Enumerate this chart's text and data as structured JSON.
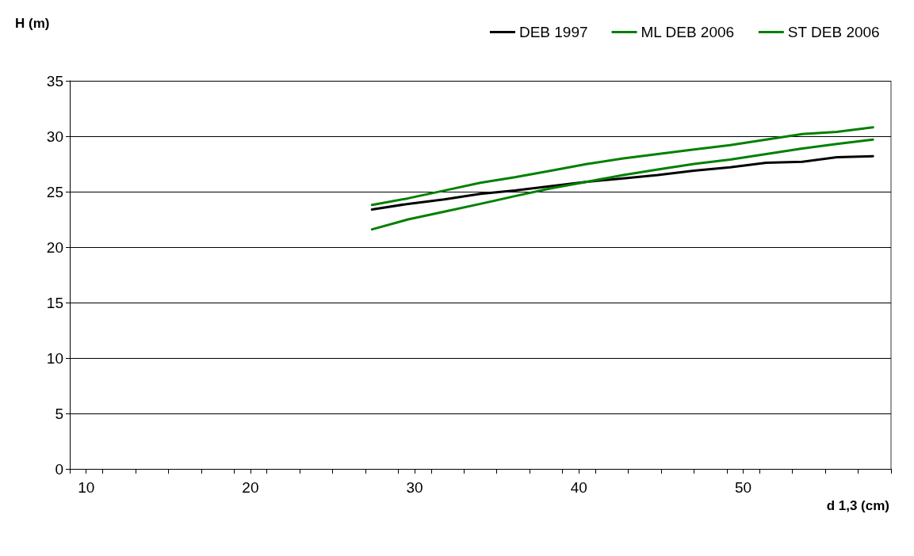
{
  "chart_data": {
    "type": "line",
    "xlabel": "d 1,3 (cm)",
    "ylabel": "H (m)",
    "x": [
      27.4,
      29.6,
      31.8,
      34.0,
      36.1,
      38.3,
      40.5,
      42.7,
      44.8,
      47.0,
      49.2,
      51.4,
      53.6,
      55.7,
      57.9
    ],
    "series": [
      {
        "name": "DEB 1997",
        "color": "#000000",
        "values": [
          23.4,
          23.9,
          24.3,
          24.8,
          25.1,
          25.5,
          25.9,
          26.2,
          26.5,
          26.9,
          27.2,
          27.6,
          27.7,
          28.1,
          28.2
        ]
      },
      {
        "name": "ML DEB 2006",
        "color": "#008000",
        "values": [
          21.6,
          22.5,
          23.2,
          23.9,
          24.6,
          25.3,
          25.9,
          26.5,
          27.0,
          27.5,
          27.9,
          28.4,
          28.9,
          29.3,
          29.7
        ]
      },
      {
        "name": "ST DEB 2006",
        "color": "#008000",
        "values": [
          23.8,
          24.4,
          25.1,
          25.8,
          26.3,
          26.9,
          27.5,
          28.0,
          28.4,
          28.8,
          29.2,
          29.7,
          30.2,
          30.4,
          30.8
        ]
      }
    ],
    "xlim": [
      9,
      59
    ],
    "xticks": [
      {
        "value": 9,
        "label": null
      },
      {
        "value": 10,
        "label": "10"
      },
      {
        "value": 11,
        "label": null
      },
      {
        "value": 13,
        "label": null
      },
      {
        "value": 15,
        "label": null
      },
      {
        "value": 17,
        "label": null
      },
      {
        "value": 19,
        "label": null
      },
      {
        "value": 20,
        "label": "20"
      },
      {
        "value": 21,
        "label": null
      },
      {
        "value": 23,
        "label": null
      },
      {
        "value": 25,
        "label": null
      },
      {
        "value": 27,
        "label": null
      },
      {
        "value": 29,
        "label": null
      },
      {
        "value": 30,
        "label": "30"
      },
      {
        "value": 31,
        "label": null
      },
      {
        "value": 33,
        "label": null
      },
      {
        "value": 35,
        "label": null
      },
      {
        "value": 37,
        "label": null
      },
      {
        "value": 39,
        "label": null
      },
      {
        "value": 40,
        "label": "40"
      },
      {
        "value": 41,
        "label": null
      },
      {
        "value": 43,
        "label": null
      },
      {
        "value": 45,
        "label": null
      },
      {
        "value": 47,
        "label": null
      },
      {
        "value": 49,
        "label": null
      },
      {
        "value": 50,
        "label": "50"
      },
      {
        "value": 51,
        "label": null
      },
      {
        "value": 53,
        "label": null
      },
      {
        "value": 55,
        "label": null
      },
      {
        "value": 57,
        "label": null
      },
      {
        "value": 59,
        "label": null
      }
    ],
    "ylim": [
      0,
      35
    ],
    "yticks": [
      0,
      5,
      10,
      15,
      20,
      25,
      30,
      35
    ],
    "grid": "y",
    "legend": "top right",
    "marker": "none",
    "line_style": "solid"
  }
}
